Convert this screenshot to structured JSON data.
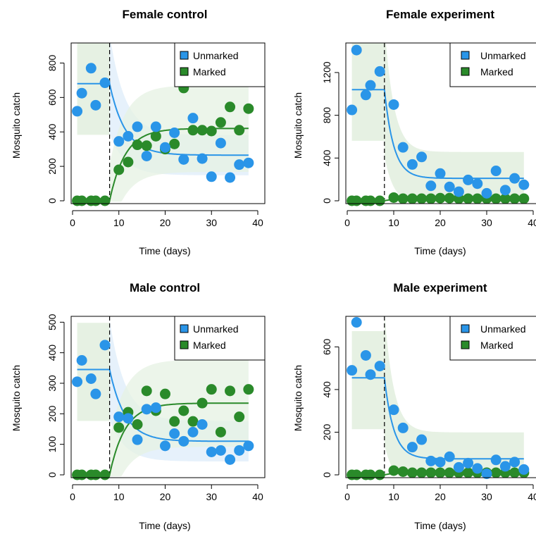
{
  "colors": {
    "unmarked_point": "#2a95e8",
    "unmarked_line": "#2a95e8",
    "unmarked_band": "#e3f0fb",
    "marked_point": "#2a8a2a",
    "marked_line": "#2a8a2a",
    "marked_band": "#e6f1e3"
  },
  "chart_data": [
    {
      "type": "scatter",
      "title": "Female control",
      "xlabel": "Time (days)",
      "ylabel": "Mosquito catch",
      "xlim": [
        0,
        40
      ],
      "ylim": [
        0,
        900
      ],
      "xticks": [
        "0",
        "10",
        "20",
        "30",
        "40"
      ],
      "xtick_values": [
        0,
        10,
        20,
        30,
        40
      ],
      "yticks": [
        "0",
        "200",
        "400",
        "600",
        "800"
      ],
      "ytick_values": [
        0,
        200,
        400,
        600,
        800
      ],
      "release_day": 8,
      "legend": {
        "position": "top-right",
        "entries": [
          "Unmarked",
          "Marked"
        ]
      },
      "series": [
        {
          "name": "Unmarked",
          "x": [
            1,
            2,
            4,
            5,
            7,
            10,
            12,
            14,
            16,
            18,
            20,
            22,
            24,
            26,
            28,
            30,
            32,
            34,
            36,
            38
          ],
          "y": [
            520,
            625,
            770,
            555,
            685,
            345,
            375,
            430,
            260,
            430,
            310,
            395,
            240,
            480,
            245,
            140,
            335,
            135,
            210,
            220
          ],
          "fit": {
            "pre": 680,
            "post": 265,
            "rate": 0.3
          }
        },
        {
          "name": "Marked",
          "x": [
            1,
            2,
            4,
            5,
            7,
            10,
            12,
            14,
            16,
            18,
            20,
            22,
            24,
            26,
            28,
            30,
            32,
            34,
            36,
            38
          ],
          "y": [
            0,
            0,
            0,
            0,
            0,
            180,
            225,
            325,
            320,
            375,
            300,
            330,
            655,
            410,
            410,
            405,
            455,
            545,
            410,
            535
          ],
          "fit": {
            "pre": 0,
            "post": 420,
            "rate": 0.3
          }
        }
      ]
    },
    {
      "type": "scatter",
      "title": "Female experiment",
      "xlabel": "Time (days)",
      "ylabel": "Mosquito catch",
      "xlim": [
        0,
        40
      ],
      "ylim": [
        0,
        1450
      ],
      "xticks": [
        "0",
        "10",
        "20",
        "30",
        "40"
      ],
      "xtick_values": [
        0,
        10,
        20,
        30,
        40
      ],
      "yticks": [
        "0",
        "400",
        "800",
        "1200"
      ],
      "ytick_values": [
        0,
        400,
        800,
        1200
      ],
      "release_day": 8,
      "legend": {
        "position": "top-right",
        "entries": [
          "Unmarked",
          "Marked"
        ]
      },
      "series": [
        {
          "name": "Unmarked",
          "x": [
            1,
            2,
            4,
            5,
            7,
            10,
            12,
            14,
            16,
            18,
            20,
            22,
            24,
            26,
            28,
            30,
            32,
            34,
            36,
            38
          ],
          "y": [
            850,
            1410,
            990,
            1080,
            1210,
            900,
            500,
            340,
            410,
            140,
            255,
            130,
            85,
            195,
            160,
            70,
            280,
            100,
            210,
            150
          ],
          "fit": {
            "pre": 1040,
            "post": 210,
            "rate": 0.5
          }
        },
        {
          "name": "Marked",
          "x": [
            1,
            2,
            4,
            5,
            7,
            10,
            12,
            14,
            16,
            18,
            20,
            22,
            24,
            26,
            28,
            30,
            32,
            34,
            36,
            38
          ],
          "y": [
            0,
            0,
            0,
            0,
            0,
            30,
            20,
            20,
            20,
            20,
            25,
            25,
            20,
            20,
            20,
            20,
            20,
            20,
            20,
            20
          ],
          "fit": {
            "pre": 0,
            "post": 20,
            "rate": 0.5
          }
        }
      ]
    },
    {
      "type": "scatter",
      "title": "Male control",
      "xlabel": "Time (days)",
      "ylabel": "Mosquito catch",
      "xlim": [
        0,
        40
      ],
      "ylim": [
        0,
        510
      ],
      "xticks": [
        "0",
        "10",
        "20",
        "30",
        "40"
      ],
      "xtick_values": [
        0,
        10,
        20,
        30,
        40
      ],
      "yticks": [
        "0",
        "100",
        "200",
        "300",
        "400",
        "500"
      ],
      "ytick_values": [
        0,
        100,
        200,
        300,
        400,
        500
      ],
      "release_day": 8,
      "legend": {
        "position": "top-right",
        "entries": [
          "Unmarked",
          "Marked"
        ]
      },
      "series": [
        {
          "name": "Unmarked",
          "x": [
            1,
            2,
            4,
            5,
            7,
            10,
            12,
            14,
            16,
            18,
            20,
            22,
            24,
            26,
            28,
            30,
            32,
            34,
            36,
            38
          ],
          "y": [
            305,
            375,
            315,
            265,
            425,
            190,
            185,
            115,
            215,
            220,
            95,
            135,
            110,
            140,
            165,
            75,
            80,
            50,
            80,
            95
          ],
          "fit": {
            "pre": 345,
            "post": 110,
            "rate": 0.3
          }
        },
        {
          "name": "Marked",
          "x": [
            1,
            2,
            4,
            5,
            7,
            10,
            12,
            14,
            16,
            18,
            20,
            22,
            24,
            26,
            28,
            30,
            32,
            34,
            36,
            38
          ],
          "y": [
            0,
            0,
            0,
            0,
            0,
            155,
            205,
            165,
            275,
            210,
            265,
            175,
            210,
            175,
            235,
            280,
            140,
            275,
            190,
            280
          ],
          "fit": {
            "pre": 0,
            "post": 235,
            "rate": 0.3
          }
        }
      ]
    },
    {
      "type": "scatter",
      "title": "Male experiment",
      "xlabel": "Time (days)",
      "ylabel": "Mosquito catch",
      "xlim": [
        0,
        40
      ],
      "ylim": [
        0,
        730
      ],
      "xticks": [
        "0",
        "10",
        "20",
        "30",
        "40"
      ],
      "xtick_values": [
        0,
        10,
        20,
        30,
        40
      ],
      "yticks": [
        "0",
        "200",
        "400",
        "600"
      ],
      "ytick_values": [
        0,
        200,
        400,
        600
      ],
      "release_day": 8,
      "legend": {
        "position": "top-right",
        "entries": [
          "Unmarked",
          "Marked"
        ]
      },
      "series": [
        {
          "name": "Unmarked",
          "x": [
            1,
            2,
            4,
            5,
            7,
            10,
            12,
            14,
            16,
            18,
            20,
            22,
            24,
            26,
            28,
            30,
            32,
            34,
            36,
            38
          ],
          "y": [
            490,
            715,
            560,
            470,
            510,
            305,
            220,
            130,
            165,
            65,
            60,
            85,
            35,
            55,
            30,
            5,
            70,
            40,
            60,
            25
          ],
          "fit": {
            "pre": 455,
            "post": 75,
            "rate": 0.5
          }
        },
        {
          "name": "Marked",
          "x": [
            1,
            2,
            4,
            5,
            7,
            10,
            12,
            14,
            16,
            18,
            20,
            22,
            24,
            26,
            28,
            30,
            32,
            34,
            36,
            38
          ],
          "y": [
            0,
            0,
            0,
            0,
            0,
            20,
            15,
            10,
            10,
            10,
            10,
            10,
            10,
            10,
            10,
            10,
            10,
            10,
            10,
            10
          ],
          "fit": {
            "pre": 0,
            "post": 10,
            "rate": 0.5
          }
        }
      ]
    }
  ]
}
